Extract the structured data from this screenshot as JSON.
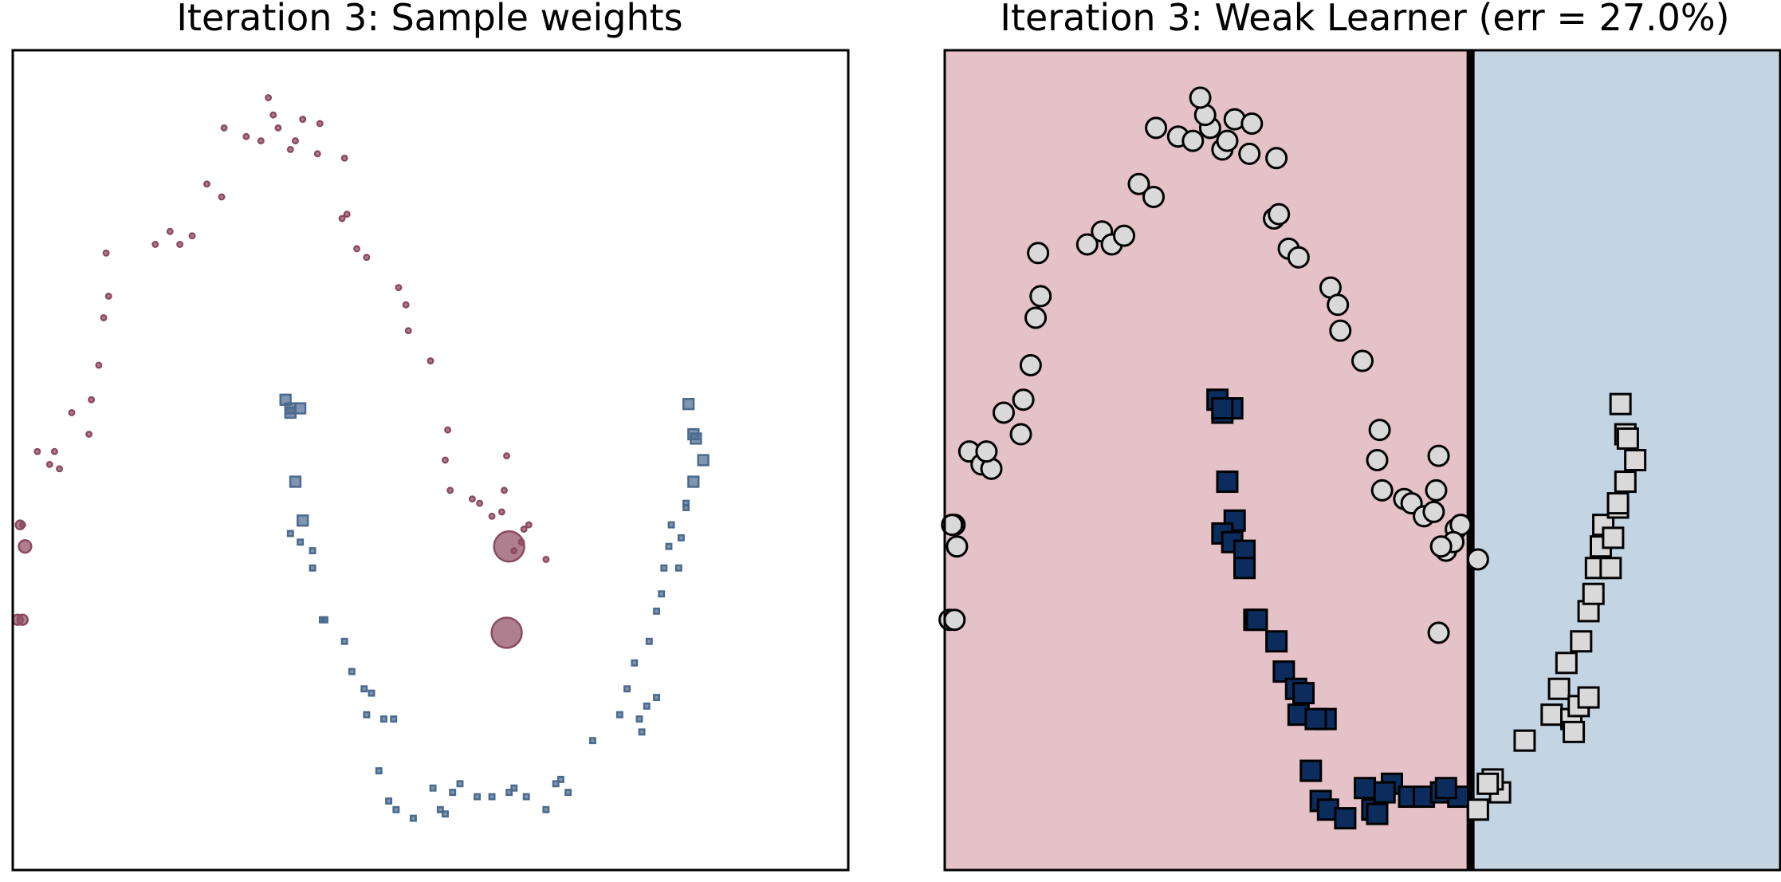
{
  "colors": {
    "class0": "#8c4a5f",
    "class1": "#4a6a8f",
    "region_red": "#e5c1c8",
    "region_blue": "#c3d4e3",
    "misclassified_fill": "#d9d9d9",
    "correct_square_fill": "#0b2c5c",
    "boundary": "#000000",
    "frame": "#000000"
  },
  "chart_data": [
    {
      "type": "scatter",
      "title": "Iteration 3: Sample weights",
      "xlim": [
        -1.2,
        2.2
      ],
      "ylim": [
        -0.7,
        1.2
      ],
      "marker_size_encodes": "sample weight",
      "series": [
        {
          "class": 0,
          "marker": "circle",
          "points": [
            [
              -0.82,
              0.73,
              1
            ],
            [
              -0.81,
              0.63,
              1
            ],
            [
              -0.83,
              0.58,
              1
            ],
            [
              -0.85,
              0.47,
              1
            ],
            [
              -0.88,
              0.39,
              1
            ],
            [
              -0.89,
              0.31,
              1
            ],
            [
              -0.96,
              0.36,
              1
            ],
            [
              -1.1,
              0.27,
              1
            ],
            [
              -1.05,
              0.24,
              1
            ],
            [
              -1.01,
              0.23,
              1
            ],
            [
              -1.03,
              0.27,
              1
            ],
            [
              -1.16,
              0.1,
              1
            ],
            [
              -0.34,
              1.02,
              1
            ],
            [
              -0.25,
              1.0,
              1
            ],
            [
              -0.19,
              0.99,
              1
            ],
            [
              -0.12,
              1.02,
              1
            ],
            [
              -0.14,
              1.05,
              1
            ],
            [
              -0.16,
              1.09,
              1
            ],
            [
              -0.02,
              1.04,
              1
            ],
            [
              -0.07,
              0.97,
              1
            ],
            [
              -0.05,
              0.99,
              1
            ],
            [
              0.05,
              1.03,
              1
            ],
            [
              0.04,
              0.96,
              1
            ],
            [
              -0.62,
              0.75,
              1
            ],
            [
              -0.56,
              0.78,
              1
            ],
            [
              -0.52,
              0.75,
              1
            ],
            [
              -0.47,
              0.77,
              1
            ],
            [
              -0.41,
              0.89,
              1
            ],
            [
              -0.35,
              0.86,
              1
            ],
            [
              0.14,
              0.81,
              1
            ],
            [
              0.2,
              0.74,
              1
            ],
            [
              0.24,
              0.72,
              1
            ],
            [
              0.37,
              0.65,
              1
            ],
            [
              0.4,
              0.61,
              1
            ],
            [
              0.41,
              0.55,
              1
            ],
            [
              0.5,
              0.48,
              1
            ],
            [
              0.57,
              0.32,
              1
            ],
            [
              0.56,
              0.25,
              1
            ],
            [
              0.58,
              0.18,
              1
            ],
            [
              0.67,
              0.16,
              1
            ],
            [
              0.7,
              0.15,
              1
            ],
            [
              0.75,
              0.12,
              1
            ],
            [
              0.8,
              0.18,
              1
            ],
            [
              0.79,
              0.13,
              1
            ],
            [
              0.81,
              0.26,
              1
            ],
            [
              0.88,
              0.09,
              1
            ],
            [
              0.84,
              0.04,
              1
            ],
            [
              0.9,
              0.1,
              1
            ],
            [
              0.87,
              0.06,
              1
            ],
            [
              0.97,
              0.02,
              1
            ],
            [
              0.15,
              0.95,
              1
            ],
            [
              0.16,
              0.82,
              1
            ],
            [
              -1.17,
              0.1,
              3
            ],
            [
              -1.15,
              0.05,
              6
            ],
            [
              -1.18,
              -0.12,
              4
            ],
            [
              -1.16,
              -0.12,
              4
            ],
            [
              0.82,
              0.05,
              35
            ],
            [
              0.81,
              -0.15,
              35
            ]
          ]
        },
        {
          "class": 1,
          "marker": "square",
          "points": [
            [
              -0.09,
              0.39,
              4
            ],
            [
              -0.07,
              0.36,
              4
            ],
            [
              -0.03,
              0.37,
              4
            ],
            [
              -0.07,
              0.37,
              4
            ],
            [
              -0.05,
              0.2,
              4
            ],
            [
              -0.02,
              0.11,
              4
            ],
            [
              -0.07,
              0.08,
              1
            ],
            [
              -0.03,
              0.06,
              1
            ],
            [
              0.02,
              0.04,
              1
            ],
            [
              0.02,
              -0.0,
              1
            ],
            [
              0.06,
              -0.12,
              1
            ],
            [
              0.07,
              -0.12,
              1
            ],
            [
              0.15,
              -0.17,
              1
            ],
            [
              0.18,
              -0.24,
              1
            ],
            [
              0.23,
              -0.28,
              1
            ],
            [
              0.26,
              -0.29,
              1
            ],
            [
              0.24,
              -0.34,
              1
            ],
            [
              0.35,
              -0.35,
              1
            ],
            [
              0.31,
              -0.35,
              1
            ],
            [
              0.29,
              -0.47,
              1
            ],
            [
              0.33,
              -0.54,
              1
            ],
            [
              0.36,
              -0.56,
              1
            ],
            [
              0.43,
              -0.58,
              1
            ],
            [
              0.51,
              -0.51,
              1
            ],
            [
              0.62,
              -0.5,
              1
            ],
            [
              0.54,
              -0.56,
              1
            ],
            [
              0.59,
              -0.52,
              1
            ],
            [
              0.56,
              -0.57,
              1
            ],
            [
              0.69,
              -0.53,
              1
            ],
            [
              0.75,
              -0.53,
              1
            ],
            [
              0.82,
              -0.52,
              1
            ],
            [
              0.89,
              -0.53,
              1
            ],
            [
              0.84,
              -0.51,
              1
            ],
            [
              0.97,
              -0.56,
              1
            ],
            [
              1.06,
              -0.52,
              1
            ],
            [
              1.03,
              -0.49,
              1
            ],
            [
              1.01,
              -0.5,
              1
            ],
            [
              1.16,
              -0.4,
              1
            ],
            [
              1.27,
              -0.34,
              1
            ],
            [
              1.3,
              -0.28,
              1
            ],
            [
              1.33,
              -0.22,
              1
            ],
            [
              1.39,
              -0.17,
              1
            ],
            [
              1.42,
              -0.1,
              1
            ],
            [
              1.44,
              -0.06,
              1
            ],
            [
              1.45,
              0.0,
              1
            ],
            [
              1.47,
              0.05,
              1
            ],
            [
              1.48,
              0.1,
              1
            ],
            [
              1.51,
              0.0,
              1
            ],
            [
              1.52,
              0.07,
              1
            ],
            [
              1.54,
              0.14,
              1
            ],
            [
              1.54,
              0.15,
              1
            ],
            [
              1.35,
              -0.35,
              1
            ],
            [
              1.36,
              -0.38,
              1
            ],
            [
              1.38,
              -0.32,
              1
            ],
            [
              1.42,
              -0.3,
              1
            ],
            [
              1.55,
              0.38,
              4
            ],
            [
              1.57,
              0.31,
              4
            ],
            [
              1.58,
              0.3,
              4
            ],
            [
              1.61,
              0.25,
              4
            ],
            [
              1.57,
              0.2,
              4
            ]
          ]
        }
      ]
    },
    {
      "type": "scatter",
      "title": "Iteration 3: Weak Learner (err = 27.0%)",
      "xlim": [
        -1.2,
        2.2
      ],
      "ylim": [
        -0.7,
        1.2
      ],
      "decision_boundary_x": 0.94,
      "left_region_class": 0,
      "right_region_class": 1
    }
  ]
}
